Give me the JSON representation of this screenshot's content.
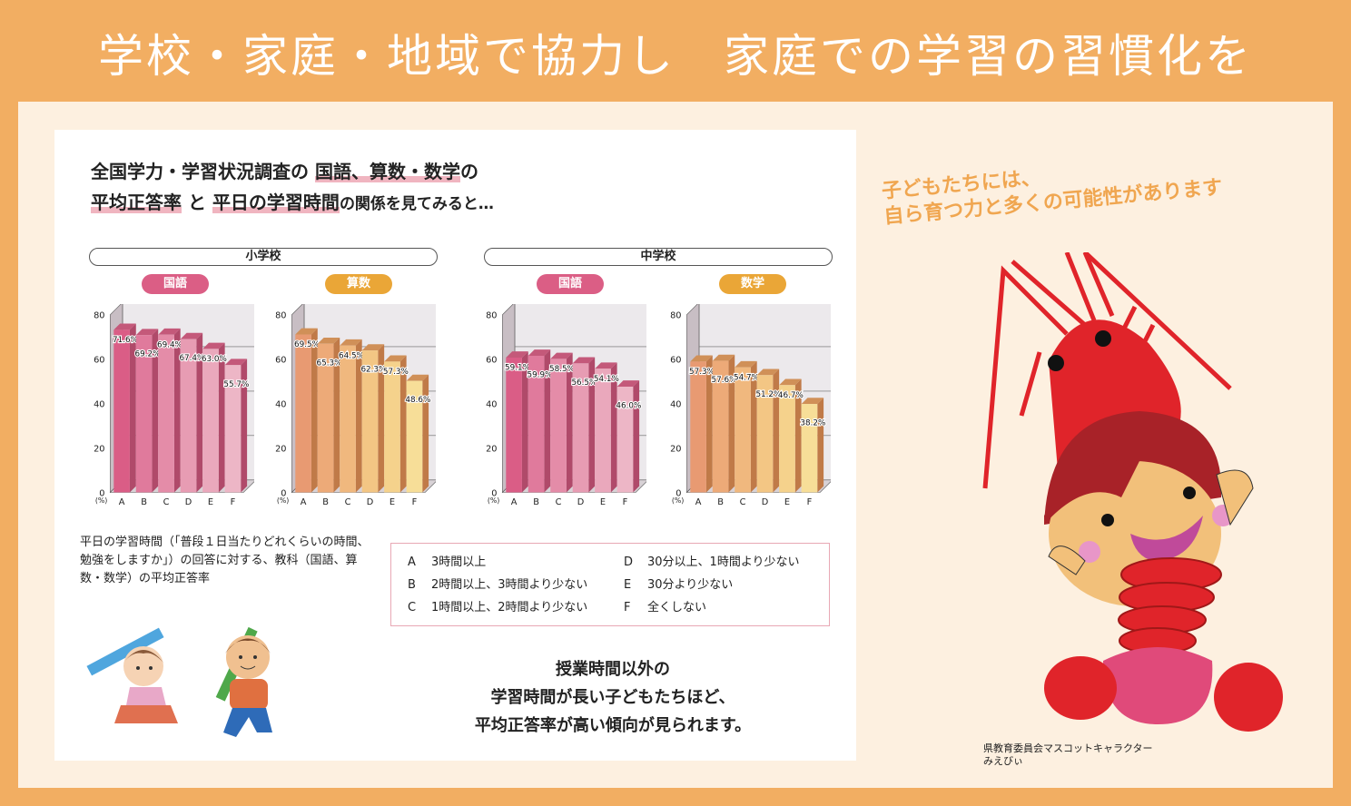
{
  "header": {
    "title": "学校・家庭・地域で協力し　家庭での学習の習慣化を"
  },
  "intro": {
    "line1_pre": "全国学力・学習状況調査の",
    "line1_hl": "国語、算数・数学",
    "line1_post": "の",
    "line2_hl1": "平均正答率",
    "line2_mid": "と",
    "line2_hl2": "平日の学習時間",
    "line2_post": "の関係を見てみると…"
  },
  "schools": {
    "elementary": "小学校",
    "junior_high": "中学校"
  },
  "subjects": {
    "e_japanese": "国語",
    "e_math": "算数",
    "j_japanese": "国語",
    "j_math": "数学"
  },
  "colors": {
    "pink_pill": "#DB5E85",
    "orange_pill": "#EAA637",
    "header_bg": "#F2AE62",
    "panel_bg": "#FDF0E0",
    "tagline": "#F0A650"
  },
  "chart_data": [
    {
      "type": "bar",
      "title": "小学校 国語",
      "categories": [
        "A",
        "B",
        "C",
        "D",
        "E",
        "F"
      ],
      "values": [
        71.6,
        69.2,
        69.4,
        67.4,
        63.0,
        55.7
      ],
      "ylabel": "(%)",
      "ylim": [
        0,
        80
      ],
      "yticks": [
        0,
        20,
        40,
        60,
        80
      ],
      "grid": true,
      "style": "3d",
      "color": "pink"
    },
    {
      "type": "bar",
      "title": "小学校 算数",
      "categories": [
        "A",
        "B",
        "C",
        "D",
        "E",
        "F"
      ],
      "values": [
        69.5,
        65.3,
        64.5,
        62.3,
        57.3,
        48.6
      ],
      "ylabel": "(%)",
      "ylim": [
        0,
        80
      ],
      "yticks": [
        0,
        20,
        40,
        60,
        80
      ],
      "grid": true,
      "style": "3d",
      "color": "orange"
    },
    {
      "type": "bar",
      "title": "中学校 国語",
      "categories": [
        "A",
        "B",
        "C",
        "D",
        "E",
        "F"
      ],
      "values": [
        59.1,
        59.9,
        58.5,
        56.5,
        54.1,
        46.0
      ],
      "ylabel": "(%)",
      "ylim": [
        0,
        80
      ],
      "yticks": [
        0,
        20,
        40,
        60,
        80
      ],
      "grid": true,
      "style": "3d",
      "color": "pink"
    },
    {
      "type": "bar",
      "title": "中学校 数学",
      "categories": [
        "A",
        "B",
        "C",
        "D",
        "E",
        "F"
      ],
      "values": [
        57.3,
        57.6,
        54.7,
        51.2,
        46.7,
        38.2
      ],
      "ylabel": "(%)",
      "ylim": [
        0,
        80
      ],
      "yticks": [
        0,
        20,
        40,
        60,
        80
      ],
      "grid": true,
      "style": "3d",
      "color": "orange"
    }
  ],
  "note": "平日の学習時間（「普段１日当たりどれくらいの時間、勉強をしますか」）の回答に対する、教科（国語、算数・数学）の平均正答率",
  "legend": [
    {
      "key": "A",
      "label": "3時間以上"
    },
    {
      "key": "B",
      "label": "2時間以上、3時間より少ない"
    },
    {
      "key": "C",
      "label": "1時間以上、2時間より少ない"
    },
    {
      "key": "D",
      "label": "30分以上、1時間より少ない"
    },
    {
      "key": "E",
      "label": "30分より少ない"
    },
    {
      "key": "F",
      "label": "全くしない"
    }
  ],
  "conclusion": [
    "授業時間以外の",
    "学習時間が長い子どもたちほど、",
    "平均正答率が高い傾向が見られます。"
  ],
  "tagline": [
    "子どもたちには、",
    "自ら育つ力と多くの可能性があります"
  ],
  "mascot_caption": [
    "県教育委員会マスコットキャラクター",
    "みえびぃ"
  ]
}
